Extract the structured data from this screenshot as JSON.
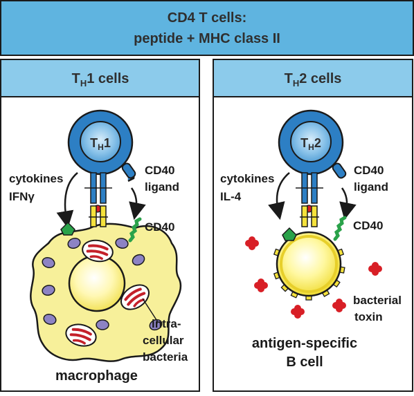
{
  "header": {
    "title_line1": "CD4 T cells:",
    "title_line2": "peptide + MHC class II"
  },
  "panels": [
    {
      "title_main": "T",
      "title_sub": "H",
      "title_rest": "1 cells",
      "cell_main": "T",
      "cell_sub": "H",
      "cell_num": "1",
      "cytokines_label": "cytokines",
      "cytokine_name": "IFNγ",
      "ligand_line1": "CD40",
      "ligand_line2": "ligand",
      "cd40_label": "CD40",
      "bacteria_line1": "intra-",
      "bacteria_line2": "cellular",
      "bacteria_line3": "bacteria",
      "target_label": "macrophage"
    },
    {
      "title_main": "T",
      "title_sub": "H",
      "title_rest": "2 cells",
      "cell_main": "T",
      "cell_sub": "H",
      "cell_num": "2",
      "cytokines_label": "cytokines",
      "cytokine_name": "IL-4",
      "ligand_line1": "CD40",
      "ligand_line2": "ligand",
      "cd40_label": "CD40",
      "toxin_line1": "bacterial",
      "toxin_line2": "toxin",
      "target_line1": "antigen-specific",
      "target_line2": "B cell"
    }
  ],
  "colors": {
    "header_bg": "#5fb4e0",
    "panel_title_bg": "#8ccbeb",
    "tcell_blue": "#2d7fc4",
    "tcell_inner": "#9fd0ee",
    "macrophage": "#f7f09a",
    "nucleus": "#fff7a8",
    "vesicle": "#8d83c4",
    "bacteria_red": "#c4202a",
    "toxin_red": "#d81f26",
    "receptor_yellow": "#f5e23c",
    "green": "#2aa24a"
  }
}
